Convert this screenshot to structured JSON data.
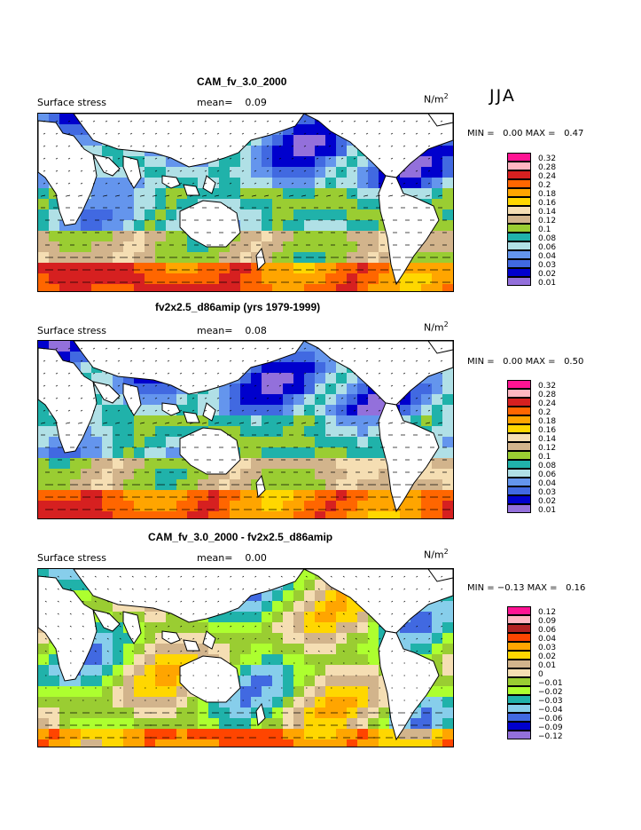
{
  "season": "JJA",
  "panels": [
    {
      "title": "CAM_fv_3.0_2000",
      "label": "Surface stress",
      "mean_label": "mean=",
      "mean_value": "0.09",
      "units_base": "N/m",
      "units_exp": "2",
      "min_label": "MIN =",
      "min_value": "0.00",
      "max_label": "MAX =",
      "max_value": "0.47",
      "levels": [
        "0.32",
        "0.28",
        "0.24",
        "0.2",
        "0.18",
        "0.16",
        "0.14",
        "0.12",
        "0.1",
        "0.08",
        "0.06",
        "0.04",
        "0.03",
        "0.02",
        "0.01"
      ],
      "colors": [
        "#ff1493",
        "#ffb6c1",
        "#d62020",
        "#ff6600",
        "#ffa500",
        "#ffd700",
        "#f5deb3",
        "#d2b48c",
        "#9acd32",
        "#20b2aa",
        "#b0e0e6",
        "#6495ed",
        "#4169e1",
        "#0000cd",
        "#9370db"
      ]
    },
    {
      "title": "fv2x2.5_d86amip (yrs 1979-1999)",
      "label": "Surface stress",
      "mean_label": "mean=",
      "mean_value": "0.08",
      "units_base": "N/m",
      "units_exp": "2",
      "min_label": "MIN =",
      "min_value": "0.00",
      "max_label": "MAX =",
      "max_value": "0.50",
      "levels": [
        "0.32",
        "0.28",
        "0.24",
        "0.2",
        "0.18",
        "0.16",
        "0.14",
        "0.12",
        "0.1",
        "0.08",
        "0.06",
        "0.04",
        "0.03",
        "0.02",
        "0.01"
      ],
      "colors": [
        "#ff1493",
        "#ffb6c1",
        "#d62020",
        "#ff6600",
        "#ffa500",
        "#ffd700",
        "#f5deb3",
        "#d2b48c",
        "#9acd32",
        "#20b2aa",
        "#b0e0e6",
        "#6495ed",
        "#4169e1",
        "#0000cd",
        "#9370db"
      ]
    },
    {
      "title": "CAM_fv_3.0_2000 - fv2x2.5_d86amip",
      "label": "Surface stress",
      "mean_label": "mean=",
      "mean_value": "0.00",
      "units_base": "N/m",
      "units_exp": "2",
      "min_label": "MIN =",
      "min_value": "−0.13",
      "max_label": "MAX =",
      "max_value": "0.16",
      "levels": [
        "0.12",
        "0.09",
        "0.06",
        "0.04",
        "0.03",
        "0.02",
        "0.01",
        "0",
        "−0.01",
        "−0.02",
        "−0.03",
        "−0.04",
        "−0.06",
        "−0.09",
        "−0.12"
      ],
      "colors": [
        "#ff1493",
        "#ffb6c1",
        "#b22222",
        "#ff4500",
        "#ffa500",
        "#ffd700",
        "#d2b48c",
        "#f5deb3",
        "#9acd32",
        "#adff2f",
        "#20b2aa",
        "#87ceeb",
        "#4169e1",
        "#0000cd",
        "#9370db"
      ]
    }
  ],
  "chart_data": [
    {
      "type": "heatmap",
      "title": "CAM_fv_3.0_2000",
      "subtitle": "Surface stress",
      "mean": 0.09,
      "units": "N/m2",
      "min": 0.0,
      "max": 0.47,
      "legend_levels": [
        0.32,
        0.28,
        0.24,
        0.2,
        0.18,
        0.16,
        0.14,
        0.12,
        0.1,
        0.08,
        0.06,
        0.04,
        0.03,
        0.02,
        0.01
      ],
      "legend": "right"
    },
    {
      "type": "heatmap",
      "title": "fv2x2.5_d86amip (yrs 1979-1999)",
      "subtitle": "Surface stress",
      "mean": 0.08,
      "units": "N/m2",
      "min": 0.0,
      "max": 0.5,
      "legend_levels": [
        0.32,
        0.28,
        0.24,
        0.2,
        0.18,
        0.16,
        0.14,
        0.12,
        0.1,
        0.08,
        0.06,
        0.04,
        0.03,
        0.02,
        0.01
      ],
      "legend": "right"
    },
    {
      "type": "heatmap",
      "title": "CAM_fv_3.0_2000 - fv2x2.5_d86amip",
      "subtitle": "Surface stress",
      "mean": 0.0,
      "units": "N/m2",
      "min": -0.13,
      "max": 0.16,
      "legend_levels": [
        0.12,
        0.09,
        0.06,
        0.04,
        0.03,
        0.02,
        0.01,
        0,
        -0.01,
        -0.02,
        -0.03,
        -0.04,
        -0.06,
        -0.09,
        -0.12
      ],
      "legend": "right"
    }
  ]
}
